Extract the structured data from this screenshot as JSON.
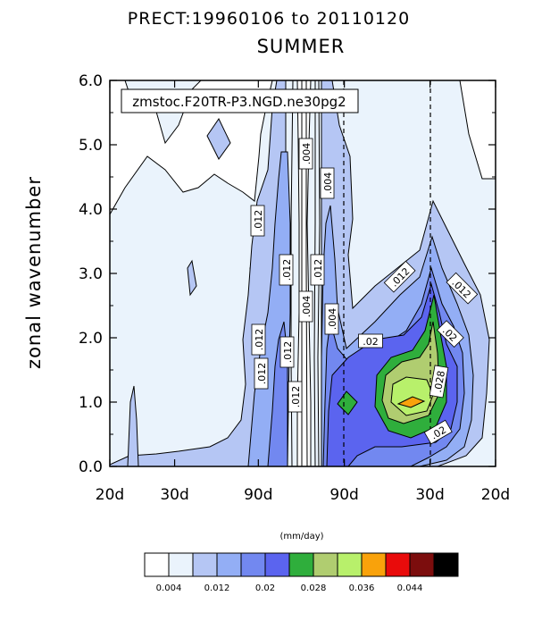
{
  "chart_data": {
    "type": "contour",
    "title": "PRECT:19960106 to 20110120",
    "subtitle": "SUMMER",
    "annotation": "zmstoc.F20TR-P3.NGD.ne30pg2",
    "ylabel": "zonal wavenumber",
    "ylim": [
      0,
      6
    ],
    "yticks": [
      "0.0",
      "1.0",
      "2.0",
      "3.0",
      "4.0",
      "5.0",
      "6.0"
    ],
    "xticks": [
      "20d",
      "30d",
      "90d",
      "90d",
      "30d",
      "20d"
    ],
    "colorbar": {
      "unit": "(mm/day)",
      "levels": [
        0.004,
        0.008,
        0.012,
        0.016,
        0.02,
        0.024,
        0.028,
        0.032,
        0.036,
        0.04,
        0.044,
        0.048
      ],
      "labels": [
        "0.004",
        "0.012",
        "0.02",
        "0.028",
        "0.036",
        "0.044"
      ],
      "colors": [
        "#ffffff",
        "#eaf3fc",
        "#b5c6f4",
        "#93aef5",
        "#7288f0",
        "#5b64ef",
        "#2fae3c",
        "#b0cd70",
        "#b8f06b",
        "#f9a20b",
        "#e90b0b",
        "#7c0d0d",
        "#000000"
      ]
    },
    "contour_labels": [
      ".004",
      ".012",
      ".004",
      ".012",
      ".004",
      ".012",
      ".012",
      ".004",
      ".012",
      ".012",
      ".012",
      ".012",
      ".02",
      ".02",
      ".028",
      ".02",
      ".012"
    ]
  }
}
